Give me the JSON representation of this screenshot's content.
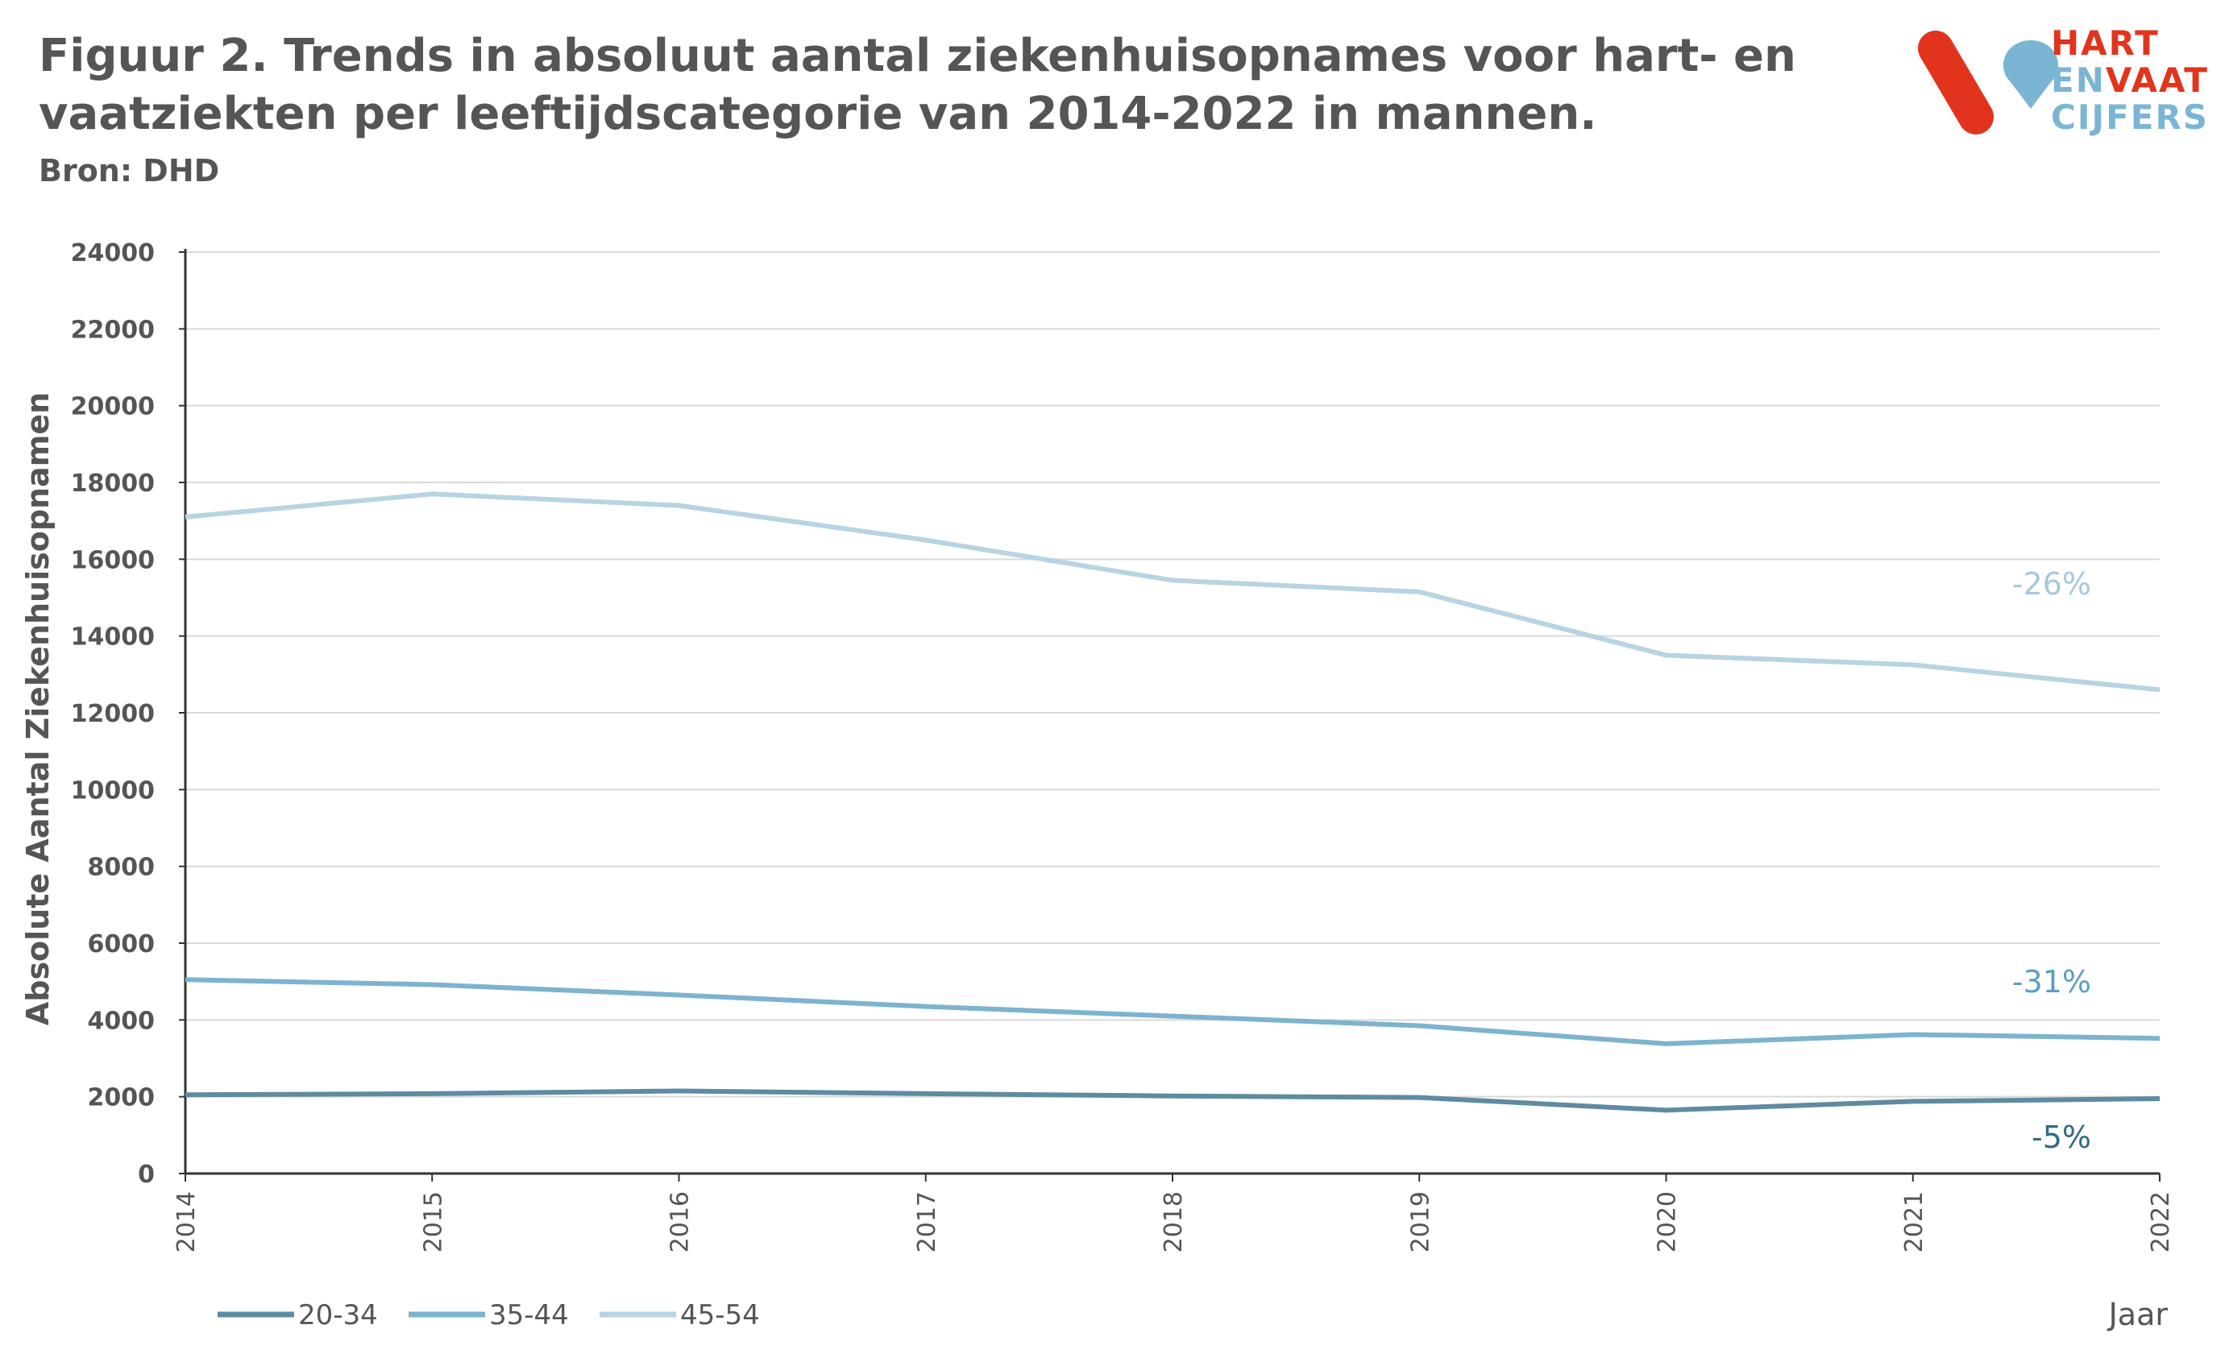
{
  "header": {
    "title": "Figuur 2. Trends in absoluut aantal ziekenhuisopnames voor hart- en vaatziekten per leeftijdscategorie van 2014-2022 in mannen.",
    "source": "Bron: DHD"
  },
  "logo": {
    "line1": "HART",
    "line2a": "EN",
    "line2b": "VAAT",
    "line3": "CIJFERS",
    "red": "#e2341d",
    "blue": "#7ab6d3"
  },
  "chart_data": {
    "type": "line",
    "title": "Figuur 2. Trends in absoluut aantal ziekenhuisopnames voor hart- en vaatziekten per leeftijdscategorie van 2014-2022 in mannen.",
    "xlabel": "Jaar",
    "ylabel": "Absolute Aantal Ziekenhuisopnamen",
    "x": [
      "2014",
      "2015",
      "2016",
      "2017",
      "2018",
      "2019",
      "2020",
      "2021",
      "2022"
    ],
    "ylim": [
      0,
      24000
    ],
    "yticks": [
      0,
      2000,
      4000,
      6000,
      8000,
      10000,
      12000,
      14000,
      16000,
      18000,
      20000,
      22000,
      24000
    ],
    "grid": true,
    "legend_position": "bottom-left",
    "series": [
      {
        "name": "20-34",
        "color": "#5f8ba0",
        "values": [
          2050,
          2080,
          2150,
          2080,
          2020,
          1980,
          1650,
          1880,
          1950
        ],
        "change_label": "-5%",
        "label_color": "#2f6a86"
      },
      {
        "name": "35-44",
        "color": "#7cb3cf",
        "values": [
          5050,
          4920,
          4650,
          4350,
          4100,
          3850,
          3380,
          3620,
          3520
        ],
        "change_label": "-31%",
        "label_color": "#5a9fc4"
      },
      {
        "name": "45-54",
        "color": "#b8d4e3",
        "values": [
          17100,
          17700,
          17400,
          16500,
          15450,
          15150,
          13500,
          13250,
          12600
        ],
        "change_label": "-26%",
        "label_color": "#a7c8da"
      }
    ]
  }
}
